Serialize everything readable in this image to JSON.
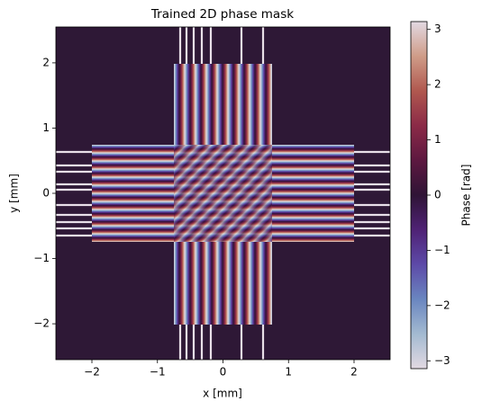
{
  "chart_data": {
    "type": "heatmap",
    "title": "Trained 2D phase mask",
    "xlabel": "x [mm]",
    "ylabel": "y [mm]",
    "xlim": [
      -2.55,
      2.55
    ],
    "ylim": [
      -2.55,
      2.55
    ],
    "xticks": [
      {
        "value": -2,
        "label": "−2"
      },
      {
        "value": -1,
        "label": "−1"
      },
      0,
      1,
      2
    ],
    "yticks": [
      {
        "value": -2,
        "label": "−2"
      },
      {
        "value": -1,
        "label": "−1"
      },
      0,
      1,
      2
    ],
    "colorbar": {
      "label": "Phase [rad]",
      "lim": [
        -3.1416,
        3.1416
      ],
      "ticks": [
        {
          "value": -3,
          "label": "−3"
        },
        {
          "value": -2,
          "label": "−2"
        },
        {
          "value": -1,
          "label": "−1"
        },
        0,
        1,
        2,
        3
      ],
      "colors": [
        "#e2d9e2",
        "#a3bad1",
        "#6a86c0",
        "#5d4aa8",
        "#4f2275",
        "#2f1436",
        "#5d1840",
        "#8b2a47",
        "#b0584f",
        "#cf9c88",
        "#e2d9e2"
      ]
    },
    "background": "#2e1836"
  }
}
